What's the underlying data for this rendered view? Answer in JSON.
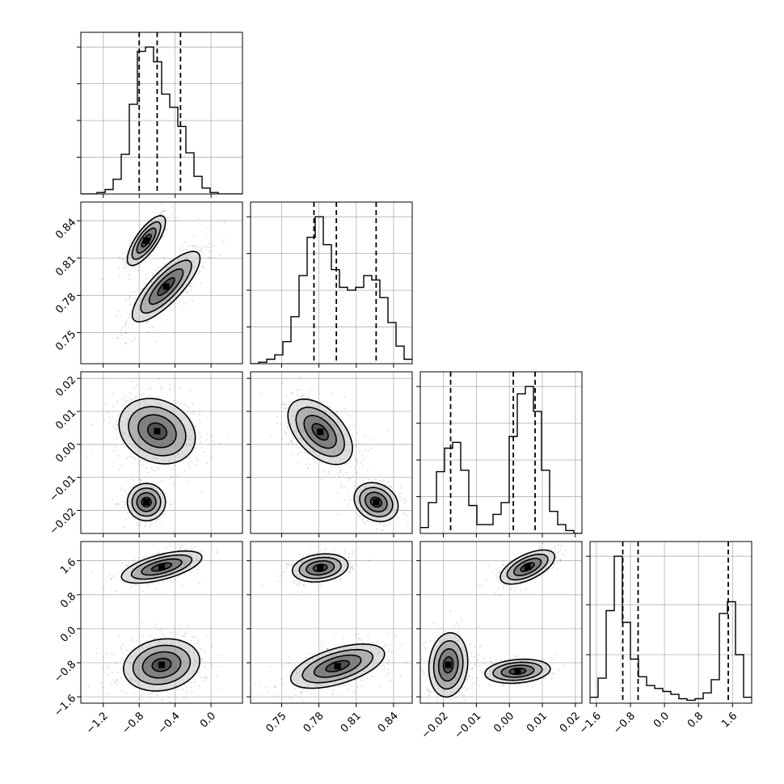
{
  "chart_data": {
    "type": "corner",
    "title": "",
    "grid": true,
    "parameters": [
      {
        "range": [
          -1.45,
          0.35
        ],
        "ticks": [
          -1.2,
          -0.8,
          -0.4,
          0.0
        ],
        "tick_labels": [
          "−1.2",
          "−0.8",
          "−0.4",
          "0.0"
        ],
        "quantiles": [
          -0.8,
          -0.6,
          -0.34
        ],
        "hist": {
          "edges": [
            -1.45,
            -1.36,
            -1.27,
            -1.18,
            -1.09,
            -1.0,
            -0.91,
            -0.82,
            -0.73,
            -0.64,
            -0.55,
            -0.46,
            -0.37,
            -0.28,
            -0.19,
            -0.1,
            -0.01,
            0.08,
            0.17,
            0.26,
            0.35
          ],
          "counts": [
            0,
            0,
            0.01,
            0.03,
            0.1,
            0.27,
            0.61,
            0.97,
            1.0,
            0.9,
            0.68,
            0.59,
            0.46,
            0.28,
            0.12,
            0.04,
            0.01,
            0,
            0,
            0
          ],
          "ymax": 1.1,
          "yticks": [
            0.25,
            0.5,
            0.75,
            1.0
          ]
        }
      },
      {
        "range": [
          0.725,
          0.855
        ],
        "ticks": [
          0.75,
          0.78,
          0.81,
          0.84
        ],
        "tick_labels": [
          "0.75",
          "0.78",
          "0.81",
          "0.84"
        ],
        "quantiles": [
          0.776,
          0.794,
          0.826
        ],
        "hist": {
          "edges": [
            0.725,
            0.7315,
            0.738,
            0.7445,
            0.751,
            0.7575,
            0.764,
            0.7705,
            0.777,
            0.7835,
            0.79,
            0.7965,
            0.803,
            0.8095,
            0.816,
            0.8225,
            0.829,
            0.8355,
            0.842,
            0.8485,
            0.855
          ],
          "counts": [
            0,
            0.01,
            0.03,
            0.06,
            0.15,
            0.32,
            0.6,
            0.86,
            1.0,
            0.81,
            0.64,
            0.52,
            0.5,
            0.52,
            0.6,
            0.57,
            0.45,
            0.28,
            0.12,
            0.03
          ],
          "ymax": 1.1,
          "yticks": [
            0.25,
            0.5,
            0.75,
            1.0
          ]
        }
      },
      {
        "range": [
          -0.027,
          0.022
        ],
        "ticks": [
          -0.02,
          -0.01,
          0.0,
          0.01,
          0.02
        ],
        "tick_labels": [
          "−0.02",
          "−0.01",
          "0.00",
          "0.01",
          "0.02"
        ],
        "quantiles": [
          -0.0178,
          0.0012,
          0.0078
        ],
        "hist": {
          "edges": [
            -0.027,
            -0.02455,
            -0.0221,
            -0.01965,
            -0.0172,
            -0.01475,
            -0.0123,
            -0.00985,
            -0.0074,
            -0.00495,
            -0.0025,
            -5e-05,
            0.0024,
            0.00485,
            0.0073,
            0.00975,
            0.0122,
            0.01465,
            0.0171,
            0.01955,
            0.022
          ],
          "counts": [
            0.04,
            0.21,
            0.42,
            0.58,
            0.62,
            0.43,
            0.19,
            0.06,
            0.06,
            0.13,
            0.21,
            0.66,
            0.95,
            1.0,
            0.83,
            0.43,
            0.15,
            0.06,
            0.02,
            0
          ],
          "ymax": 1.1,
          "yticks": [
            0.25,
            0.5,
            0.75,
            1.0
          ]
        }
      },
      {
        "range": [
          -1.75,
          2.05
        ],
        "ticks": [
          -1.6,
          -0.8,
          0.0,
          0.8,
          1.6
        ],
        "tick_labels": [
          "−1.6",
          "−0.8",
          "0.0",
          "0.8",
          "1.6"
        ],
        "quantiles": [
          -0.98,
          -0.62,
          1.5
        ],
        "hist": {
          "edges": [
            -1.75,
            -1.56,
            -1.37,
            -1.18,
            -0.99,
            -0.8,
            -0.61,
            -0.42,
            -0.23,
            -0.04,
            0.15,
            0.34,
            0.53,
            0.72,
            0.91,
            1.1,
            1.29,
            1.48,
            1.67,
            1.86,
            2.05
          ],
          "counts": [
            0.04,
            0.17,
            0.63,
            1.0,
            0.55,
            0.3,
            0.18,
            0.12,
            0.1,
            0.08,
            0.06,
            0.03,
            0.02,
            0.03,
            0.07,
            0.16,
            0.61,
            0.69,
            0.33,
            0.04
          ],
          "ymax": 1.1,
          "yticks": [
            0.33,
            0.67,
            1.0
          ]
        }
      }
    ],
    "pairs": [
      {
        "x": 0,
        "y": 1,
        "components": [
          {
            "mx": -0.72,
            "my": 0.824,
            "sx": 0.09,
            "sy": 0.0085,
            "rho": 0.75,
            "w": 0.42
          },
          {
            "mx": -0.5,
            "my": 0.787,
            "sx": 0.16,
            "sy": 0.012,
            "rho": 0.8,
            "w": 0.58
          }
        ]
      },
      {
        "x": 0,
        "y": 2,
        "components": [
          {
            "mx": -0.72,
            "my": -0.0175,
            "sx": 0.09,
            "sy": 0.0024,
            "rho": 0.0,
            "w": 0.35
          },
          {
            "mx": -0.6,
            "my": 0.004,
            "sx": 0.18,
            "sy": 0.0042,
            "rho": -0.2,
            "w": 0.65
          }
        ]
      },
      {
        "x": 0,
        "y": 3,
        "components": [
          {
            "mx": -0.55,
            "my": 1.45,
            "sx": 0.19,
            "sy": 0.16,
            "rho": 0.6,
            "w": 0.33
          },
          {
            "mx": -0.55,
            "my": -0.85,
            "sx": 0.18,
            "sy": 0.26,
            "rho": 0.15,
            "w": 0.67
          }
        ]
      },
      {
        "x": 1,
        "y": 2,
        "components": [
          {
            "mx": 0.781,
            "my": 0.0038,
            "sx": 0.011,
            "sy": 0.0042,
            "rho": -0.5,
            "w": 0.65
          },
          {
            "mx": 0.826,
            "my": -0.0175,
            "sx": 0.0075,
            "sy": 0.0025,
            "rho": -0.2,
            "w": 0.35
          }
        ]
      },
      {
        "x": 1,
        "y": 3,
        "components": [
          {
            "mx": 0.781,
            "my": 1.43,
            "sx": 0.0095,
            "sy": 0.14,
            "rho": 0.2,
            "w": 0.33
          },
          {
            "mx": 0.795,
            "my": -0.88,
            "sx": 0.016,
            "sy": 0.22,
            "rho": 0.55,
            "w": 0.67
          }
        ]
      },
      {
        "x": 2,
        "y": 3,
        "components": [
          {
            "mx": 0.0055,
            "my": 1.45,
            "sx": 0.0035,
            "sy": 0.17,
            "rho": 0.6,
            "w": 0.33
          },
          {
            "mx": 0.0025,
            "my": -1.0,
            "sx": 0.0042,
            "sy": 0.12,
            "rho": 0.2,
            "w": 0.33
          },
          {
            "mx": -0.0185,
            "my": -0.85,
            "sx": 0.0025,
            "sy": 0.32,
            "rho": 0.1,
            "w": 0.34
          }
        ]
      }
    ],
    "contour_levels_sigma": [
      0.5,
      1.0,
      1.5,
      2.0
    ]
  }
}
